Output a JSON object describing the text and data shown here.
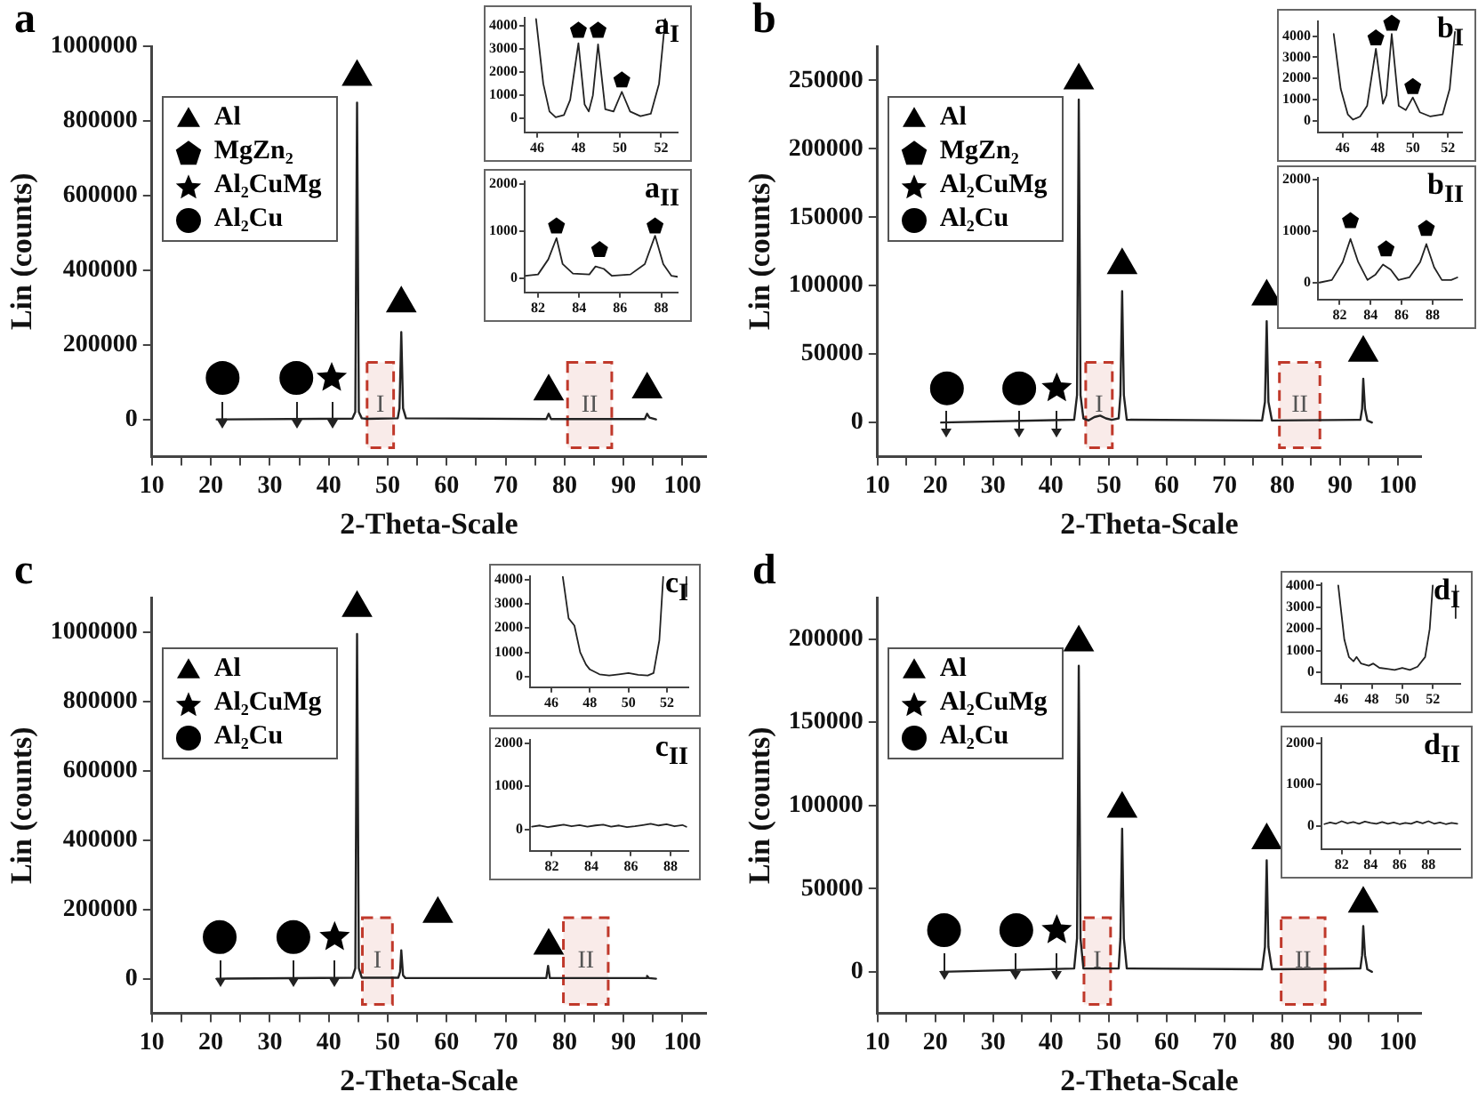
{
  "chart_data": [
    {
      "type": "line",
      "title": "a",
      "xlabel": "2-Theta-Scale",
      "ylabel": "Lin (counts)",
      "xlim": [
        10,
        104
      ],
      "xticks": [
        10,
        {
          "value": 15,
          "label": null
        },
        20,
        {
          "value": 25,
          "label": null
        },
        30,
        {
          "value": 35,
          "label": null
        },
        40,
        {
          "value": 45,
          "label": null
        },
        50,
        {
          "value": 55,
          "label": null
        },
        60,
        {
          "value": 65,
          "label": null
        },
        70,
        {
          "value": 75,
          "label": null
        },
        80,
        {
          "value": 85,
          "label": null
        },
        90,
        {
          "value": 95,
          "label": null
        },
        100
      ],
      "ylim": [
        -100000,
        1000000
      ],
      "yticks": [
        0,
        200000,
        400000,
        600000,
        800000,
        1000000
      ],
      "legend": "top left",
      "bands": [
        {
          "axis": "x",
          "from": 46.5,
          "to": 51,
          "label": "I",
          "color": "#c0392b"
        },
        {
          "axis": "x",
          "from": 80.5,
          "to": 88,
          "label": "II",
          "color": "#c0392b"
        }
      ],
      "series": [
        {
          "color": "#222222",
          "x": [
            21,
            44,
            44.5,
            44.8,
            45.1,
            45.6,
            46.5,
            51.7,
            52,
            52.3,
            52.6,
            53.1,
            76.9,
            77.3,
            77.7,
            93.6,
            94,
            94.4,
            95.5
          ],
          "values": [
            0,
            2000,
            20000,
            849000,
            20000,
            3000,
            1500,
            3000,
            30000,
            234000,
            30000,
            3000,
            1000,
            15000,
            1000,
            1000,
            15000,
            5000,
            0
          ]
        },
        {
          "name": "Al",
          "type": "scatter",
          "marker": "triangle",
          "color": "#000000",
          "x": [
            44.8,
            52.3,
            77.3,
            94.0
          ],
          "values": [
            918000,
            311000,
            75000,
            80000
          ]
        },
        {
          "name": "MgZn₂",
          "type": "scatter",
          "color": "#000000"
        },
        {
          "name": "Al₂CuMg",
          "type": "scatter",
          "marker": "star",
          "color": "#000000",
          "x": [
            40.5
          ],
          "values": [
            111000
          ]
        },
        {
          "name": "Al₂Cu",
          "type": "scatter",
          "marker": "circle",
          "color": "#000000",
          "x": [
            22,
            34.5
          ],
          "values": [
            111000,
            111000
          ]
        }
      ]
    },
    {
      "type": "line",
      "title": "a$_{I}$",
      "xlim": [
        45.4,
        52.8
      ],
      "xticks": [
        46,
        48,
        50,
        52
      ],
      "ylim": [
        -600,
        4350
      ],
      "yticks": [
        0,
        1000,
        2000,
        3000,
        4000
      ],
      "series": [
        {
          "color": "#222222",
          "x": [
            45.95,
            46.3,
            46.6,
            46.9,
            47.3,
            47.6,
            48.0,
            48.3,
            48.5,
            48.7,
            48.95,
            49.3,
            49.7,
            50.1,
            50.5,
            51,
            51.5,
            51.9,
            52.2
          ],
          "values": [
            4300,
            1500,
            300,
            50,
            150,
            800,
            3250,
            600,
            300,
            1000,
            3200,
            400,
            300,
            1150,
            300,
            100,
            200,
            1500,
            4300
          ]
        },
        {
          "type": "scatter",
          "color": "#000000",
          "x": [
            48.0,
            48.95,
            50.1
          ],
          "values": [
            3800,
            3800,
            1650
          ]
        }
      ]
    },
    {
      "type": "line",
      "title": "a$_{II}$",
      "xlim": [
        81.35,
        88.8
      ],
      "xticks": [
        82,
        84,
        86,
        88
      ],
      "ylim": [
        -300,
        2050
      ],
      "yticks": [
        0,
        1000,
        2000
      ],
      "series": [
        {
          "color": "#222222",
          "x": [
            81.4,
            82,
            82.5,
            82.9,
            83.2,
            83.7,
            84.5,
            84.8,
            85.2,
            85.6,
            86.5,
            87.2,
            87.7,
            88.1,
            88.5,
            88.8
          ],
          "values": [
            50,
            80,
            400,
            850,
            300,
            100,
            80,
            250,
            200,
            50,
            80,
            300,
            900,
            300,
            50,
            30
          ]
        },
        {
          "type": "scatter",
          "color": "#000000",
          "x": [
            82.9,
            85,
            87.7
          ],
          "values": [
            1100,
            600,
            1100
          ]
        }
      ]
    },
    {
      "type": "line",
      "title": "b",
      "xlabel": "2-Theta-Scale",
      "ylabel": "Lin (counts)",
      "xlim": [
        10,
        104
      ],
      "xticks": [
        10,
        {
          "value": 15,
          "label": null
        },
        20,
        {
          "value": 25,
          "label": null
        },
        30,
        {
          "value": 35,
          "label": null
        },
        40,
        {
          "value": 45,
          "label": null
        },
        50,
        {
          "value": 55,
          "label": null
        },
        60,
        {
          "value": 65,
          "label": null
        },
        70,
        {
          "value": 75,
          "label": null
        },
        80,
        {
          "value": 85,
          "label": null
        },
        90,
        {
          "value": 95,
          "label": null
        },
        100
      ],
      "ylim": [
        -25000,
        275000
      ],
      "yticks": [
        0,
        50000,
        100000,
        150000,
        200000,
        250000
      ],
      "legend": "top left",
      "bands": [
        {
          "axis": "x",
          "from": 46,
          "to": 50.6,
          "label": "I",
          "color": "#c0392b"
        },
        {
          "axis": "x",
          "from": 79.5,
          "to": 86.5,
          "label": "II",
          "color": "#c0392b"
        }
      ],
      "series": [
        {
          "color": "#222222",
          "x": [
            21,
            44,
            44.5,
            44.8,
            45.1,
            45.6,
            46.5,
            47.5,
            48.5,
            49.5,
            50.5,
            51.7,
            52,
            52.3,
            52.6,
            53.1,
            76.5,
            77,
            77.3,
            77.6,
            78.2,
            93.5,
            93.8,
            94,
            94.3,
            94.7,
            95.5
          ],
          "values": [
            0,
            2000,
            20000,
            236000,
            20000,
            3000,
            1500,
            4000,
            5000,
            3000,
            2000,
            3000,
            20000,
            96000,
            20000,
            2000,
            1500,
            15000,
            74000,
            15000,
            1500,
            2000,
            10000,
            32000,
            10000,
            1500,
            0
          ]
        },
        {
          "name": "Al",
          "type": "scatter",
          "marker": "triangle",
          "color": "#000000",
          "x": [
            44.8,
            52.3,
            77.3,
            94.0
          ],
          "values": [
            250000,
            115000,
            92000,
            51000
          ]
        },
        {
          "name": "MgZn₂",
          "type": "scatter",
          "color": "#000000"
        },
        {
          "name": "Al₂CuMg",
          "type": "scatter",
          "marker": "star",
          "color": "#000000",
          "x": [
            41
          ],
          "values": [
            25000
          ]
        },
        {
          "name": "Al₂Cu",
          "type": "scatter",
          "marker": "circle",
          "color": "#000000",
          "x": [
            22,
            34.5
          ],
          "values": [
            25000,
            25000
          ]
        }
      ]
    },
    {
      "type": "line",
      "title": "b$_{I}$",
      "xlim": [
        44.6,
        52.8
      ],
      "xticks": [
        46,
        48,
        50,
        52
      ],
      "ylim": [
        -550,
        4700
      ],
      "yticks": [
        0,
        1000,
        2000,
        3000,
        4000
      ],
      "series": [
        {
          "color": "#222222",
          "x": [
            45.5,
            45.9,
            46.3,
            46.6,
            47,
            47.4,
            47.9,
            48.3,
            48.5,
            48.8,
            49.2,
            49.6,
            50.0,
            50.4,
            51,
            51.7,
            52.1,
            52.4
          ],
          "values": [
            4100,
            1500,
            300,
            50,
            200,
            700,
            3400,
            800,
            1200,
            4100,
            700,
            500,
            1100,
            400,
            200,
            300,
            1500,
            4200
          ]
        },
        {
          "type": "scatter",
          "color": "#000000",
          "x": [
            47.9,
            48.8,
            50.0
          ],
          "values": [
            3900,
            4600,
            1600
          ]
        }
      ]
    },
    {
      "type": "line",
      "title": "b$_{II}$",
      "xlim": [
        80.6,
        89.9
      ],
      "xticks": [
        82,
        84,
        86,
        88
      ],
      "ylim": [
        -330,
        2040
      ],
      "yticks": [
        0,
        1000,
        2000
      ],
      "series": [
        {
          "color": "#222222",
          "x": [
            80.7,
            81.5,
            82.2,
            82.7,
            83.2,
            83.8,
            84.3,
            84.8,
            85.3,
            85.8,
            86.5,
            87.2,
            87.6,
            88.1,
            88.6,
            89.2,
            89.6
          ],
          "values": [
            0,
            50,
            400,
            850,
            400,
            50,
            150,
            350,
            250,
            50,
            100,
            400,
            750,
            300,
            50,
            50,
            100
          ]
        },
        {
          "type": "scatter",
          "color": "#000000",
          "x": [
            82.7,
            85,
            87.6
          ],
          "values": [
            1200,
            650,
            1050
          ]
        }
      ]
    },
    {
      "type": "line",
      "title": "c",
      "xlabel": "2-Theta-Scale",
      "ylabel": "Lin (counts)",
      "xlim": [
        10,
        104
      ],
      "xticks": [
        10,
        {
          "value": 15,
          "label": null
        },
        20,
        {
          "value": 25,
          "label": null
        },
        30,
        {
          "value": 35,
          "label": null
        },
        40,
        {
          "value": 45,
          "label": null
        },
        50,
        {
          "value": 55,
          "label": null
        },
        60,
        {
          "value": 65,
          "label": null
        },
        70,
        {
          "value": 75,
          "label": null
        },
        80,
        {
          "value": 85,
          "label": null
        },
        90,
        {
          "value": 95,
          "label": null
        },
        100
      ],
      "ylim": [
        -100000,
        1100000
      ],
      "yticks": [
        0,
        200000,
        400000,
        600000,
        800000,
        1000000
      ],
      "legend": "top left",
      "bands": [
        {
          "axis": "x",
          "from": 45.7,
          "to": 50.8,
          "label": "I",
          "color": "#c0392b"
        },
        {
          "axis": "x",
          "from": 79.8,
          "to": 87.4,
          "label": "II",
          "color": "#c0392b"
        }
      ],
      "series": [
        {
          "color": "#222222",
          "x": [
            21,
            44,
            44.5,
            44.8,
            45.1,
            45.6,
            51.8,
            52.1,
            52.3,
            52.6,
            53,
            76.9,
            77.2,
            77.5,
            93.8,
            94,
            94.3,
            95.5
          ],
          "values": [
            0,
            3000,
            30000,
            995000,
            30000,
            3000,
            3000,
            20000,
            82000,
            10000,
            2000,
            2000,
            37000,
            2000,
            2000,
            8000,
            2000,
            0
          ]
        },
        {
          "name": "Al",
          "type": "scatter",
          "marker": "triangle",
          "color": "#000000",
          "x": [
            44.8,
            58.5,
            77.3
          ],
          "values": [
            1070000,
            187000,
            95000
          ]
        },
        {
          "name": "Al₂CuMg",
          "type": "scatter",
          "marker": "star",
          "color": "#000000",
          "x": [
            41
          ],
          "values": [
            120000
          ]
        },
        {
          "name": "Al₂Cu",
          "type": "scatter",
          "marker": "circle",
          "color": "#000000",
          "x": [
            21.5,
            34
          ],
          "values": [
            120000,
            120000
          ]
        }
      ]
    },
    {
      "type": "line",
      "title": "c$_{I}$",
      "xlim": [
        44.9,
        53.1
      ],
      "xticks": [
        46,
        48,
        50,
        52
      ],
      "ylim": [
        -430,
        4130
      ],
      "yticks": [
        0,
        1000,
        2000,
        3000,
        4000
      ],
      "series": [
        {
          "color": "#222222",
          "x": [
            46.6,
            46.9,
            47.2,
            47.5,
            47.8,
            48,
            48.5,
            49,
            49.5,
            50,
            50.5,
            51,
            51.3,
            51.6,
            51.8,
            null,
            53.0,
            53.0
          ],
          "values": [
            4100,
            2400,
            2100,
            1000,
            500,
            300,
            100,
            50,
            100,
            150,
            80,
            50,
            150,
            1500,
            4100,
            null,
            3300,
            4100
          ]
        }
      ]
    },
    {
      "type": "line",
      "title": "c$_{II}$",
      "xlim": [
        80.9,
        88.9
      ],
      "xticks": [
        82,
        84,
        86,
        88
      ],
      "ylim": [
        -500,
        2080
      ],
      "yticks": [
        0,
        1000,
        2000
      ],
      "series": [
        {
          "color": "#222222",
          "x": [
            81,
            81.4,
            81.8,
            82.2,
            82.6,
            83,
            83.4,
            83.8,
            84.2,
            84.6,
            85,
            85.4,
            85.8,
            86.2,
            86.6,
            87,
            87.4,
            87.8,
            88.2,
            88.6,
            88.8
          ],
          "values": [
            60,
            90,
            50,
            80,
            110,
            70,
            100,
            60,
            90,
            110,
            60,
            90,
            50,
            70,
            100,
            130,
            90,
            120,
            70,
            100,
            60
          ]
        }
      ]
    },
    {
      "type": "line",
      "title": "d",
      "xlabel": "2-Theta-Scale",
      "ylabel": "Lin (counts)",
      "xlim": [
        10,
        104
      ],
      "xticks": [
        10,
        {
          "value": 15,
          "label": null
        },
        20,
        {
          "value": 25,
          "label": null
        },
        30,
        {
          "value": 35,
          "label": null
        },
        40,
        {
          "value": 45,
          "label": null
        },
        50,
        {
          "value": 55,
          "label": null
        },
        60,
        {
          "value": 65,
          "label": null
        },
        70,
        {
          "value": 75,
          "label": null
        },
        80,
        {
          "value": 85,
          "label": null
        },
        90,
        {
          "value": 95,
          "label": null
        },
        100
      ],
      "ylim": [
        -25000,
        225000
      ],
      "yticks": [
        0,
        50000,
        100000,
        150000,
        200000
      ],
      "legend": "top left",
      "bands": [
        {
          "axis": "x",
          "from": 45.7,
          "to": 50.3,
          "label": "I",
          "color": "#c0392b"
        },
        {
          "axis": "x",
          "from": 79.8,
          "to": 87.4,
          "label": "II",
          "color": "#c0392b"
        }
      ],
      "series": [
        {
          "color": "#222222",
          "x": [
            21,
            44,
            44.5,
            44.8,
            45.1,
            45.6,
            51.7,
            52,
            52.3,
            52.6,
            53.1,
            76.5,
            77,
            77.3,
            77.6,
            78.2,
            93.5,
            93.8,
            94,
            94.3,
            94.7,
            95.5
          ],
          "values": [
            0,
            2000,
            20000,
            184000,
            20000,
            2000,
            2000,
            20000,
            86000,
            20000,
            2000,
            1500,
            15000,
            67000,
            15000,
            1500,
            2000,
            10000,
            27500,
            10000,
            1500,
            0
          ]
        },
        {
          "name": "Al",
          "type": "scatter",
          "marker": "triangle",
          "color": "#000000",
          "x": [
            44.8,
            52.3,
            77.3,
            94.0
          ],
          "values": [
            198000,
            98000,
            79000,
            41000
          ]
        },
        {
          "name": "Al₂CuMg",
          "type": "scatter",
          "marker": "star",
          "color": "#000000",
          "x": [
            41
          ],
          "values": [
            25000
          ]
        },
        {
          "name": "Al₂Cu",
          "type": "scatter",
          "marker": "circle",
          "color": "#000000",
          "x": [
            21.5,
            34
          ],
          "values": [
            25000,
            25000
          ]
        }
      ]
    },
    {
      "type": "line",
      "title": "d$_{I}$",
      "xlim": [
        44.7,
        53.8
      ],
      "xticks": [
        46,
        48,
        50,
        52
      ],
      "ylim": [
        -530,
        4100
      ],
      "yticks": [
        0,
        1000,
        2000,
        3000,
        4000
      ],
      "series": [
        {
          "color": "#222222",
          "x": [
            45.8,
            46.2,
            46.5,
            46.8,
            47.0,
            47.3,
            47.8,
            48.1,
            48.5,
            49,
            49.5,
            50,
            50.5,
            51,
            51.5,
            51.8,
            52.0,
            null,
            53.5,
            53.5
          ],
          "values": [
            4000,
            1500,
            700,
            500,
            700,
            400,
            300,
            400,
            200,
            150,
            100,
            200,
            100,
            250,
            700,
            2000,
            4000,
            null,
            2500,
            4000
          ]
        }
      ]
    },
    {
      "type": "line",
      "title": "d$_{II}$",
      "xlim": [
        80.6,
        90.2
      ],
      "xticks": [
        82,
        84,
        86,
        88
      ],
      "ylim": [
        -550,
        2120
      ],
      "yticks": [
        0,
        1000,
        2000
      ],
      "series": [
        {
          "color": "#222222",
          "x": [
            80.8,
            81.2,
            81.6,
            82,
            82.4,
            82.8,
            83.2,
            83.6,
            84,
            84.4,
            84.8,
            85.2,
            85.6,
            86,
            86.4,
            86.8,
            87.2,
            87.6,
            88,
            88.4,
            88.8,
            89.2,
            89.6,
            90
          ],
          "values": [
            50,
            90,
            60,
            120,
            70,
            100,
            60,
            110,
            80,
            60,
            100,
            60,
            90,
            50,
            80,
            60,
            110,
            70,
            120,
            60,
            90,
            50,
            80,
            60
          ]
        }
      ]
    }
  ]
}
